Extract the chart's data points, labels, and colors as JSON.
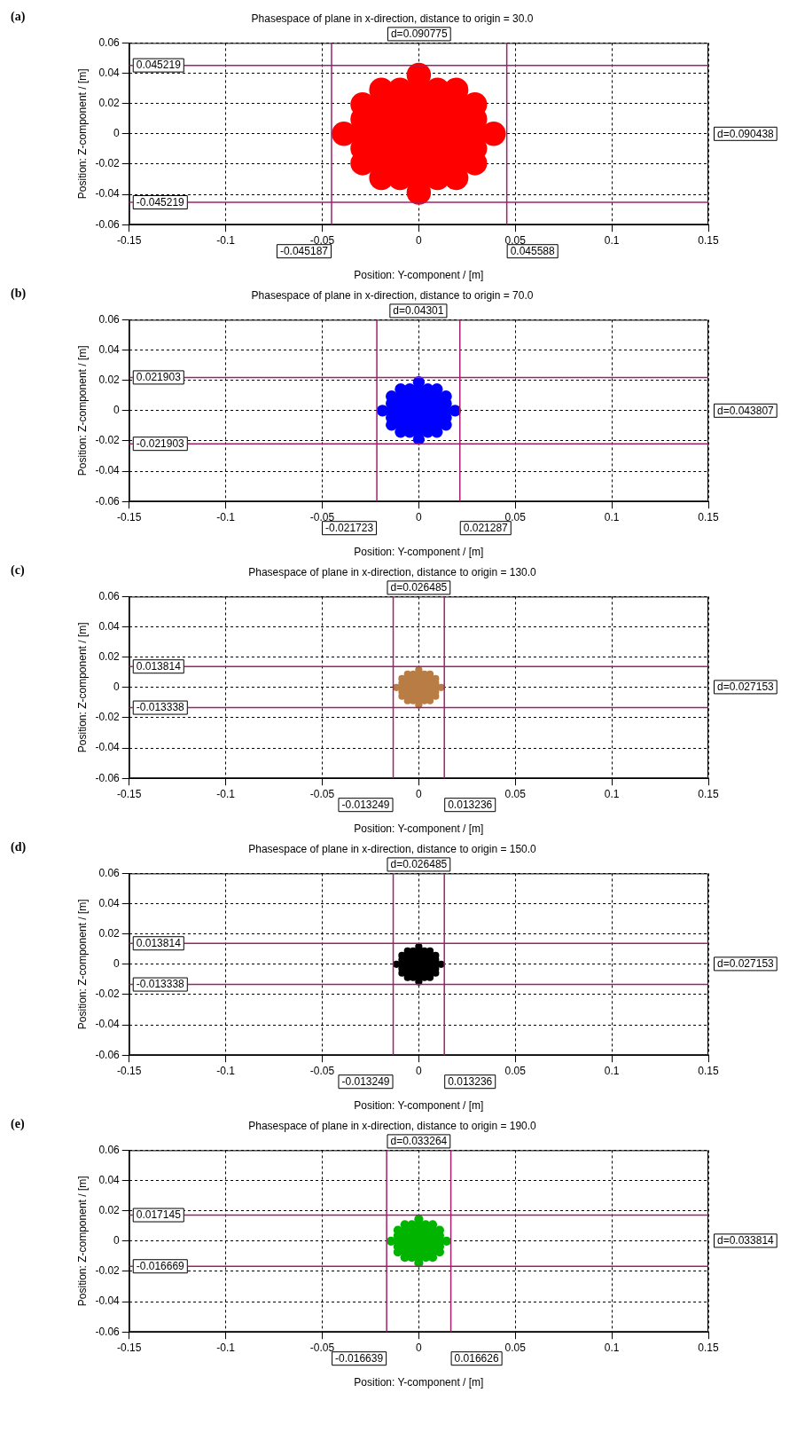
{
  "chart_data": [
    {
      "type": "scatter",
      "title": "Phasespace of plane in x-direction, distance to origin = 30.0",
      "xlabel": "Position: Y-component / [m]",
      "ylabel": "Position: Z-component / [m]",
      "xlim": [
        -0.15,
        0.15
      ],
      "ylim": [
        -0.06,
        0.06
      ],
      "xticks": [
        -0.15,
        -0.1,
        -0.05,
        0,
        0.05,
        0.1,
        0.15
      ],
      "yticks": [
        -0.06,
        -0.04,
        -0.02,
        0,
        0.02,
        0.04,
        0.06
      ],
      "grid": true,
      "marker": "circle",
      "series": [
        {
          "color": "#ff0000",
          "x": [
            0,
            -0.0194,
            -0.0097,
            0,
            0.0097,
            0.0194,
            -0.0291,
            -0.0194,
            -0.0097,
            0,
            0.0097,
            0.0194,
            0.0291,
            -0.0291,
            -0.0194,
            -0.0097,
            0,
            0.0097,
            0.0194,
            0.0291,
            -0.0388,
            -0.0291,
            -0.0194,
            -0.0097,
            0,
            0.0097,
            0.0194,
            0.0291,
            0.0388,
            -0.0291,
            -0.0194,
            -0.0097,
            0,
            0.0097,
            0.0194,
            0.0291,
            -0.0291,
            -0.0194,
            -0.0097,
            0,
            0.0097,
            0.0194,
            0.0291,
            -0.0194,
            -0.0097,
            0,
            0.0097,
            0.0194,
            0
          ],
          "values": [
            0.0388,
            0.0291,
            0.0291,
            0.0291,
            0.0291,
            0.0291,
            0.0194,
            0.0194,
            0.0194,
            0.0194,
            0.0194,
            0.0194,
            0.0194,
            0.0097,
            0.0097,
            0.0097,
            0.0097,
            0.0097,
            0.0097,
            0.0097,
            0,
            0,
            0,
            0,
            0,
            0,
            0,
            0,
            0,
            -0.0097,
            -0.0097,
            -0.0097,
            -0.0097,
            -0.0097,
            -0.0097,
            -0.0097,
            -0.0194,
            -0.0194,
            -0.0194,
            -0.0194,
            -0.0194,
            -0.0194,
            -0.0194,
            -0.0291,
            -0.0291,
            -0.0291,
            -0.0291,
            -0.0291,
            -0.0388
          ]
        }
      ],
      "ref_lines": [
        {
          "axis": "y",
          "value": 0.045219,
          "label": "0.045219",
          "color": "#a0206e"
        },
        {
          "axis": "y",
          "value": -0.045219,
          "label": "-0.045219",
          "color": "#a0206e"
        },
        {
          "axis": "x",
          "value": -0.045187,
          "label": "-0.045187",
          "color": "#a0206e"
        },
        {
          "axis": "x",
          "value": 0.045588,
          "label": "0.045588",
          "color": "#a0206e"
        }
      ],
      "annotations": [
        "(a)",
        "d=0.090775",
        "d=0.090438"
      ]
    },
    {
      "type": "scatter",
      "title": "Phasespace of plane in x-direction, distance to origin = 70.0",
      "xlabel": "Position: Y-component / [m]",
      "ylabel": "Position: Z-component / [m]",
      "xlim": [
        -0.15,
        0.15
      ],
      "ylim": [
        -0.06,
        0.06
      ],
      "xticks": [
        -0.15,
        -0.1,
        -0.05,
        0,
        0.05,
        0.1,
        0.15
      ],
      "yticks": [
        -0.06,
        -0.04,
        -0.02,
        0,
        0.02,
        0.04,
        0.06
      ],
      "grid": true,
      "marker": "circle",
      "series": [
        {
          "color": "#0000ff",
          "x": [
            0,
            -0.0094,
            -0.0047,
            0,
            0.0047,
            0.0094,
            -0.0141,
            -0.0094,
            -0.0047,
            0,
            0.0047,
            0.0094,
            0.0141,
            -0.0141,
            -0.0094,
            -0.0047,
            0,
            0.0047,
            0.0094,
            0.0141,
            -0.0188,
            -0.0141,
            -0.0094,
            -0.0047,
            0,
            0.0047,
            0.0094,
            0.0141,
            0.0188,
            -0.0141,
            -0.0094,
            -0.0047,
            0,
            0.0047,
            0.0094,
            0.0141,
            -0.0141,
            -0.0094,
            -0.0047,
            0,
            0.0047,
            0.0094,
            0.0141,
            -0.0094,
            -0.0047,
            0,
            0.0047,
            0.0094,
            0
          ],
          "values": [
            0.0188,
            0.0141,
            0.0141,
            0.0141,
            0.0141,
            0.0141,
            0.0094,
            0.0094,
            0.0094,
            0.0094,
            0.0094,
            0.0094,
            0.0094,
            0.0047,
            0.0047,
            0.0047,
            0.0047,
            0.0047,
            0.0047,
            0.0047,
            0,
            0,
            0,
            0,
            0,
            0,
            0,
            0,
            0,
            -0.0047,
            -0.0047,
            -0.0047,
            -0.0047,
            -0.0047,
            -0.0047,
            -0.0047,
            -0.0094,
            -0.0094,
            -0.0094,
            -0.0094,
            -0.0094,
            -0.0094,
            -0.0094,
            -0.0141,
            -0.0141,
            -0.0141,
            -0.0141,
            -0.0141,
            -0.0188
          ]
        }
      ],
      "ref_lines": [
        {
          "axis": "y",
          "value": 0.021903,
          "label": "0.021903",
          "color": "#a0206e"
        },
        {
          "axis": "y",
          "value": -0.021903,
          "label": "-0.021903",
          "color": "#a0206e"
        },
        {
          "axis": "x",
          "value": -0.021723,
          "label": "-0.021723",
          "color": "#a0206e"
        },
        {
          "axis": "x",
          "value": 0.021287,
          "label": "0.021287",
          "color": "#a0206e"
        }
      ],
      "annotations": [
        "(b)",
        "d=0.04301",
        "d=0.043807"
      ]
    },
    {
      "type": "scatter",
      "title": "Phasespace of plane in x-direction, distance to origin = 130.0",
      "xlabel": "Position: Y-component / [m]",
      "ylabel": "Position: Z-component / [m]",
      "xlim": [
        -0.15,
        0.15
      ],
      "ylim": [
        -0.06,
        0.06
      ],
      "xticks": [
        -0.15,
        -0.1,
        -0.05,
        0,
        0.05,
        0.1,
        0.15
      ],
      "yticks": [
        -0.06,
        -0.04,
        -0.02,
        0,
        0.02,
        0.04,
        0.06
      ],
      "grid": true,
      "marker": "circle",
      "series": [
        {
          "color": "#b87d44",
          "x": [
            0,
            -0.0058,
            -0.0029,
            0,
            0.0029,
            0.0058,
            -0.0087,
            -0.0058,
            -0.0029,
            0,
            0.0029,
            0.0058,
            0.0087,
            -0.0087,
            -0.0058,
            -0.0029,
            0,
            0.0029,
            0.0058,
            0.0087,
            -0.0116,
            -0.0087,
            -0.0058,
            -0.0029,
            0,
            0.0029,
            0.0058,
            0.0087,
            0.0116,
            -0.0087,
            -0.0058,
            -0.0029,
            0,
            0.0029,
            0.0058,
            0.0087,
            -0.0087,
            -0.0058,
            -0.0029,
            0,
            0.0029,
            0.0058,
            0.0087,
            -0.0058,
            -0.0029,
            0,
            0.0029,
            0.0058,
            0
          ],
          "values": [
            0.0116,
            0.0087,
            0.0087,
            0.0087,
            0.0087,
            0.0087,
            0.0058,
            0.0058,
            0.0058,
            0.0058,
            0.0058,
            0.0058,
            0.0058,
            0.0029,
            0.0029,
            0.0029,
            0.0029,
            0.0029,
            0.0029,
            0.0029,
            0,
            0,
            0,
            0,
            0,
            0,
            0,
            0,
            0,
            -0.0029,
            -0.0029,
            -0.0029,
            -0.0029,
            -0.0029,
            -0.0029,
            -0.0029,
            -0.0058,
            -0.0058,
            -0.0058,
            -0.0058,
            -0.0058,
            -0.0058,
            -0.0058,
            -0.0087,
            -0.0087,
            -0.0087,
            -0.0087,
            -0.0087,
            -0.0116
          ]
        }
      ],
      "ref_lines": [
        {
          "axis": "y",
          "value": 0.013814,
          "label": "0.013814",
          "color": "#a0206e"
        },
        {
          "axis": "y",
          "value": -0.013338,
          "label": "-0.013338",
          "color": "#a0206e"
        },
        {
          "axis": "x",
          "value": -0.013249,
          "label": "-0.013249",
          "color": "#a0206e"
        },
        {
          "axis": "x",
          "value": 0.013236,
          "label": "0.013236",
          "color": "#a0206e"
        }
      ],
      "annotations": [
        "(c)",
        "d=0.026485",
        "d=0.027153"
      ]
    },
    {
      "type": "scatter",
      "title": "Phasespace of plane in x-direction, distance to origin = 150.0",
      "xlabel": "Position: Y-component / [m]",
      "ylabel": "Position: Z-component / [m]",
      "xlim": [
        -0.15,
        0.15
      ],
      "ylim": [
        -0.06,
        0.06
      ],
      "xticks": [
        -0.15,
        -0.1,
        -0.05,
        0,
        0.05,
        0.1,
        0.15
      ],
      "yticks": [
        -0.06,
        -0.04,
        -0.02,
        0,
        0.02,
        0.04,
        0.06
      ],
      "grid": true,
      "marker": "circle",
      "series": [
        {
          "color": "#000000",
          "x": [
            0,
            -0.0058,
            -0.0029,
            0,
            0.0029,
            0.0058,
            -0.0087,
            -0.0058,
            -0.0029,
            0,
            0.0029,
            0.0058,
            0.0087,
            -0.0087,
            -0.0058,
            -0.0029,
            0,
            0.0029,
            0.0058,
            0.0087,
            -0.0116,
            -0.0087,
            -0.0058,
            -0.0029,
            0,
            0.0029,
            0.0058,
            0.0087,
            0.0116,
            -0.0087,
            -0.0058,
            -0.0029,
            0,
            0.0029,
            0.0058,
            0.0087,
            -0.0087,
            -0.0058,
            -0.0029,
            0,
            0.0029,
            0.0058,
            0.0087,
            -0.0058,
            -0.0029,
            0,
            0.0029,
            0.0058,
            0
          ],
          "values": [
            0.0116,
            0.0087,
            0.0087,
            0.0087,
            0.0087,
            0.0087,
            0.0058,
            0.0058,
            0.0058,
            0.0058,
            0.0058,
            0.0058,
            0.0058,
            0.0029,
            0.0029,
            0.0029,
            0.0029,
            0.0029,
            0.0029,
            0.0029,
            0,
            0,
            0,
            0,
            0,
            0,
            0,
            0,
            0,
            -0.0029,
            -0.0029,
            -0.0029,
            -0.0029,
            -0.0029,
            -0.0029,
            -0.0029,
            -0.0058,
            -0.0058,
            -0.0058,
            -0.0058,
            -0.0058,
            -0.0058,
            -0.0058,
            -0.0087,
            -0.0087,
            -0.0087,
            -0.0087,
            -0.0087,
            -0.0116
          ]
        }
      ],
      "ref_lines": [
        {
          "axis": "y",
          "value": 0.013814,
          "label": "0.013814",
          "color": "#a0206e"
        },
        {
          "axis": "y",
          "value": -0.013338,
          "label": "-0.013338",
          "color": "#a0206e"
        },
        {
          "axis": "x",
          "value": -0.013249,
          "label": "-0.013249",
          "color": "#a0206e"
        },
        {
          "axis": "x",
          "value": 0.013236,
          "label": "0.013236",
          "color": "#a0206e"
        }
      ],
      "annotations": [
        "(d)",
        "d=0.026485",
        "d=0.027153"
      ]
    },
    {
      "type": "scatter",
      "title": "Phasespace of plane in x-direction, distance to origin = 190.0",
      "xlabel": "Position: Y-component / [m]",
      "ylabel": "Position: Z-component / [m]",
      "xlim": [
        -0.15,
        0.15
      ],
      "ylim": [
        -0.06,
        0.06
      ],
      "xticks": [
        -0.15,
        -0.1,
        -0.05,
        0,
        0.05,
        0.1,
        0.15
      ],
      "yticks": [
        -0.06,
        -0.04,
        -0.02,
        0,
        0.02,
        0.04,
        0.06
      ],
      "grid": true,
      "marker": "circle",
      "series": [
        {
          "color": "#00b400",
          "x": [
            0,
            -0.0072,
            -0.0036,
            0,
            0.0036,
            0.0072,
            -0.0108,
            -0.0072,
            -0.0036,
            0,
            0.0036,
            0.0072,
            0.0108,
            -0.0108,
            -0.0072,
            -0.0036,
            0,
            0.0036,
            0.0072,
            0.0108,
            -0.0144,
            -0.0108,
            -0.0072,
            -0.0036,
            0,
            0.0036,
            0.0072,
            0.0108,
            0.0144,
            -0.0108,
            -0.0072,
            -0.0036,
            0,
            0.0036,
            0.0072,
            0.0108,
            -0.0108,
            -0.0072,
            -0.0036,
            0,
            0.0036,
            0.0072,
            0.0108,
            -0.0072,
            -0.0036,
            0,
            0.0036,
            0.0072,
            0
          ],
          "values": [
            0.0144,
            0.0108,
            0.0108,
            0.0108,
            0.0108,
            0.0108,
            0.0072,
            0.0072,
            0.0072,
            0.0072,
            0.0072,
            0.0072,
            0.0072,
            0.0036,
            0.0036,
            0.0036,
            0.0036,
            0.0036,
            0.0036,
            0.0036,
            0,
            0,
            0,
            0,
            0,
            0,
            0,
            0,
            0,
            -0.0036,
            -0.0036,
            -0.0036,
            -0.0036,
            -0.0036,
            -0.0036,
            -0.0036,
            -0.0072,
            -0.0072,
            -0.0072,
            -0.0072,
            -0.0072,
            -0.0072,
            -0.0072,
            -0.0108,
            -0.0108,
            -0.0108,
            -0.0108,
            -0.0108,
            -0.0144
          ]
        }
      ],
      "ref_lines": [
        {
          "axis": "y",
          "value": 0.017145,
          "label": "0.017145",
          "color": "#a0206e"
        },
        {
          "axis": "y",
          "value": -0.016669,
          "label": "-0.016669",
          "color": "#a0206e"
        },
        {
          "axis": "x",
          "value": -0.016639,
          "label": "-0.016639",
          "color": "#a0206e"
        },
        {
          "axis": "x",
          "value": 0.016626,
          "label": "0.016626",
          "color": "#a0206e"
        }
      ],
      "annotations": [
        "(e)",
        "d=0.033264",
        "d=0.033814"
      ]
    }
  ]
}
